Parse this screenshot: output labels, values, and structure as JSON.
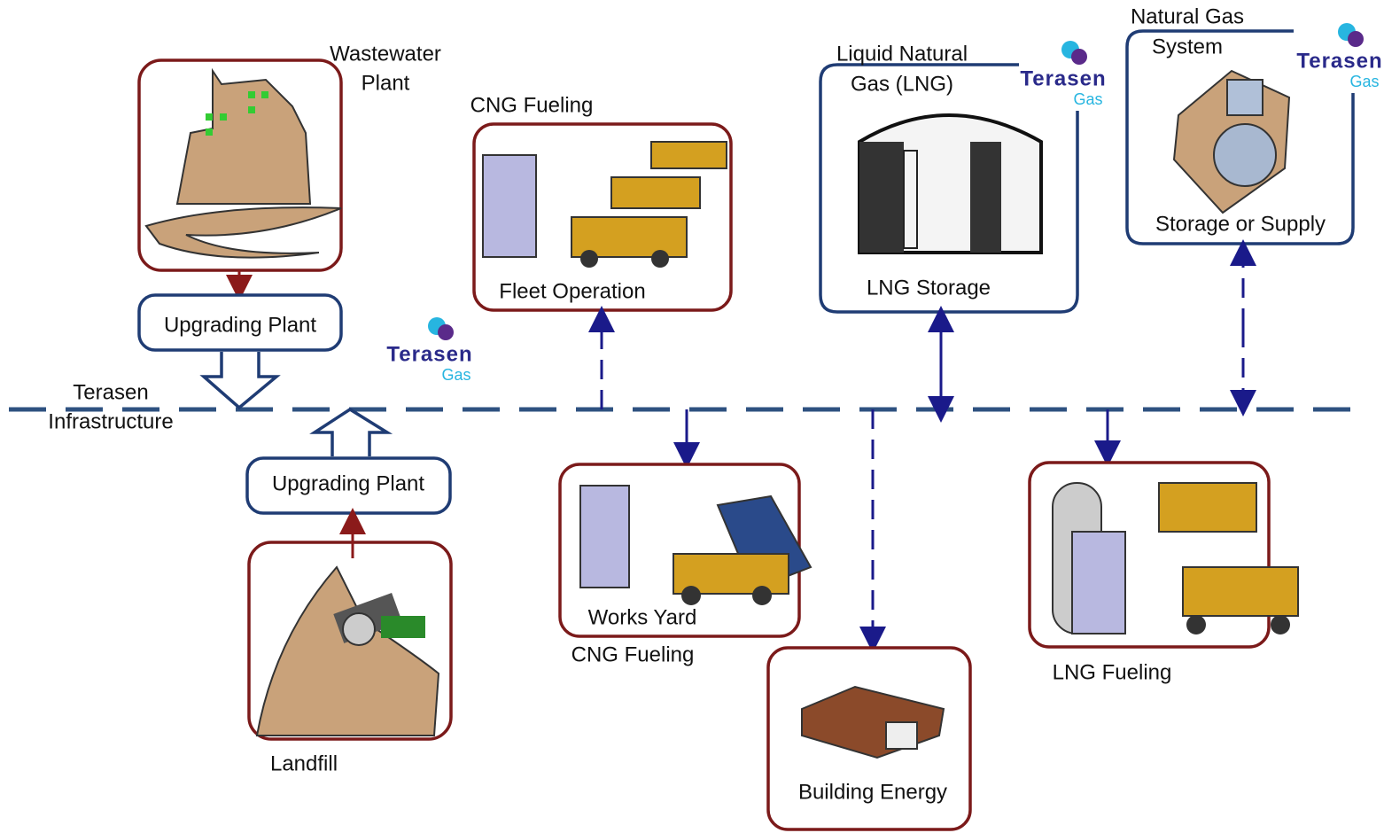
{
  "infrastructure": [
    "Terasen",
    "Infrastructure"
  ],
  "nodes": [
    {
      "caption": [
        "Wastewater",
        "Plant"
      ]
    },
    {
      "label": "Upgrading Plant"
    },
    {
      "label": "Upgrading Plant"
    },
    {
      "caption": "Landfill"
    },
    {
      "caption": "CNG Fueling",
      "label": "Fleet Operation"
    },
    {
      "caption": [
        "Liquid Natural",
        "Gas (LNG)"
      ],
      "label": "LNG Storage"
    },
    {
      "caption": [
        "Natural Gas",
        "System"
      ],
      "label": "Storage or Supply"
    },
    {
      "label": "Works Yard",
      "caption": "CNG Fueling"
    },
    {
      "label": "Building Energy"
    },
    {
      "caption": "LNG Fueling"
    }
  ],
  "logos": [
    {
      "name": "Terasen",
      "sub": "Gas"
    },
    {
      "name": "Terasen",
      "sub": "Gas"
    },
    {
      "name": "Terasen",
      "sub": "Gas"
    }
  ]
}
